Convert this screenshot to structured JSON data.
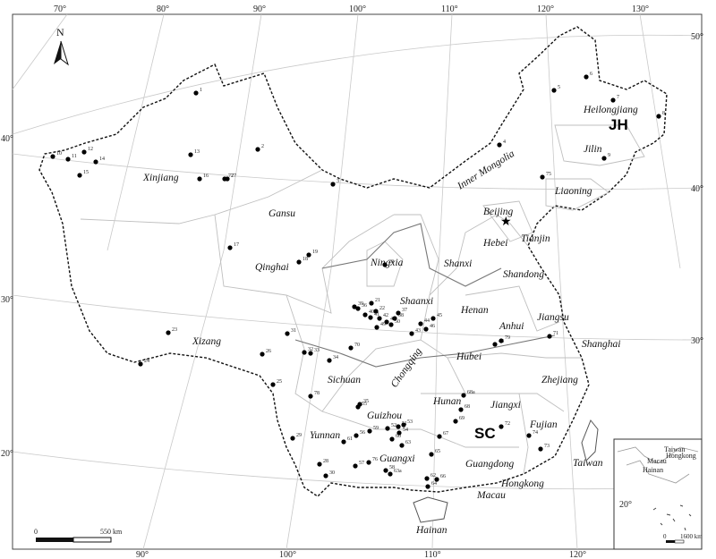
{
  "map": {
    "north_label": "N",
    "regions": {
      "jh": "JH",
      "sc": "SC"
    },
    "scale": {
      "zero": "0",
      "dist": "550 km"
    },
    "inset": {
      "dist": "1600 km",
      "zero": "0",
      "lat": "20°",
      "taiwan": "Taiwan",
      "hongkong": "Hongkong",
      "macau": "Macau",
      "hainan": "Hainan"
    },
    "capital_symbol": "★",
    "longitudes_top": [
      "70°",
      "80°",
      "90°",
      "100°",
      "110°",
      "120°",
      "130°"
    ],
    "longitudes_bottom": [
      "90°",
      "100°",
      "110°",
      "120°"
    ],
    "latitudes_left": [
      "40°",
      "30°",
      "20°"
    ],
    "latitudes_right": [
      "50°",
      "40°",
      "30°"
    ],
    "provinces": [
      "Heilongjiang",
      "Jilin",
      "Liaoning",
      "Inner Mongolia",
      "Xinjiang",
      "Gansu",
      "Beijing",
      "Tianjin",
      "Hebei",
      "Shanxi",
      "Shandong",
      "Ningxia",
      "Qinghai",
      "Shaanxi",
      "Henan",
      "Jiangsu",
      "Anhui",
      "Shanghai",
      "Xizang",
      "Sichuan",
      "Chongqing",
      "Hubei",
      "Zhejiang",
      "Hunan",
      "Jiangxi",
      "Guizhou",
      "Fujian",
      "Yunnan",
      "Guangxi",
      "Guangdong",
      "Taiwan",
      "Hongkong",
      "Macau",
      "Hainan"
    ],
    "sites": [
      "1",
      "2",
      "3",
      "4",
      "5",
      "6",
      "7",
      "8",
      "9",
      "10",
      "11",
      "12",
      "13",
      "14",
      "15",
      "16",
      "17",
      "18",
      "19",
      "20",
      "21",
      "22",
      "23",
      "24",
      "25",
      "26",
      "27",
      "28",
      "29",
      "30",
      "31",
      "32",
      "33",
      "34",
      "35",
      "36",
      "37",
      "38",
      "39",
      "40",
      "41",
      "42",
      "43",
      "44",
      "45",
      "46",
      "47",
      "48",
      "49",
      "50",
      "51",
      "52",
      "53",
      "54",
      "55",
      "56",
      "57",
      "58",
      "59",
      "60",
      "61",
      "62",
      "63",
      "63a",
      "64",
      "65",
      "66",
      "67",
      "68",
      "68a",
      "69",
      "70",
      "71",
      "72",
      "73",
      "74",
      "75",
      "76",
      "77",
      "78",
      "79"
    ]
  }
}
